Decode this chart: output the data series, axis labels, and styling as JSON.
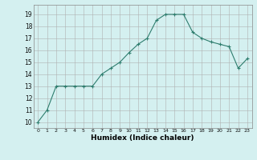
{
  "x": [
    0,
    1,
    2,
    3,
    4,
    5,
    6,
    7,
    8,
    9,
    10,
    11,
    12,
    13,
    14,
    15,
    16,
    17,
    18,
    19,
    20,
    21,
    22,
    23
  ],
  "y": [
    10,
    11,
    13,
    13,
    13,
    13,
    13,
    14,
    14.5,
    15,
    15.8,
    16.5,
    17,
    18.5,
    19,
    19,
    19,
    17.5,
    17,
    16.7,
    16.5,
    16.3,
    14.5,
    15.3
  ],
  "line_color": "#2e7d6e",
  "marker": "+",
  "bg_color": "#d4f0f0",
  "grid_color": "#b0b0b0",
  "xlabel": "Humidex (Indice chaleur)",
  "ylabel_ticks": [
    10,
    11,
    12,
    13,
    14,
    15,
    16,
    17,
    18,
    19
  ],
  "xticks": [
    0,
    1,
    2,
    3,
    4,
    5,
    6,
    7,
    8,
    9,
    10,
    11,
    12,
    13,
    14,
    15,
    16,
    17,
    18,
    19,
    20,
    21,
    22,
    23
  ],
  "ylim": [
    9.5,
    19.8
  ],
  "xlim": [
    -0.5,
    23.5
  ]
}
